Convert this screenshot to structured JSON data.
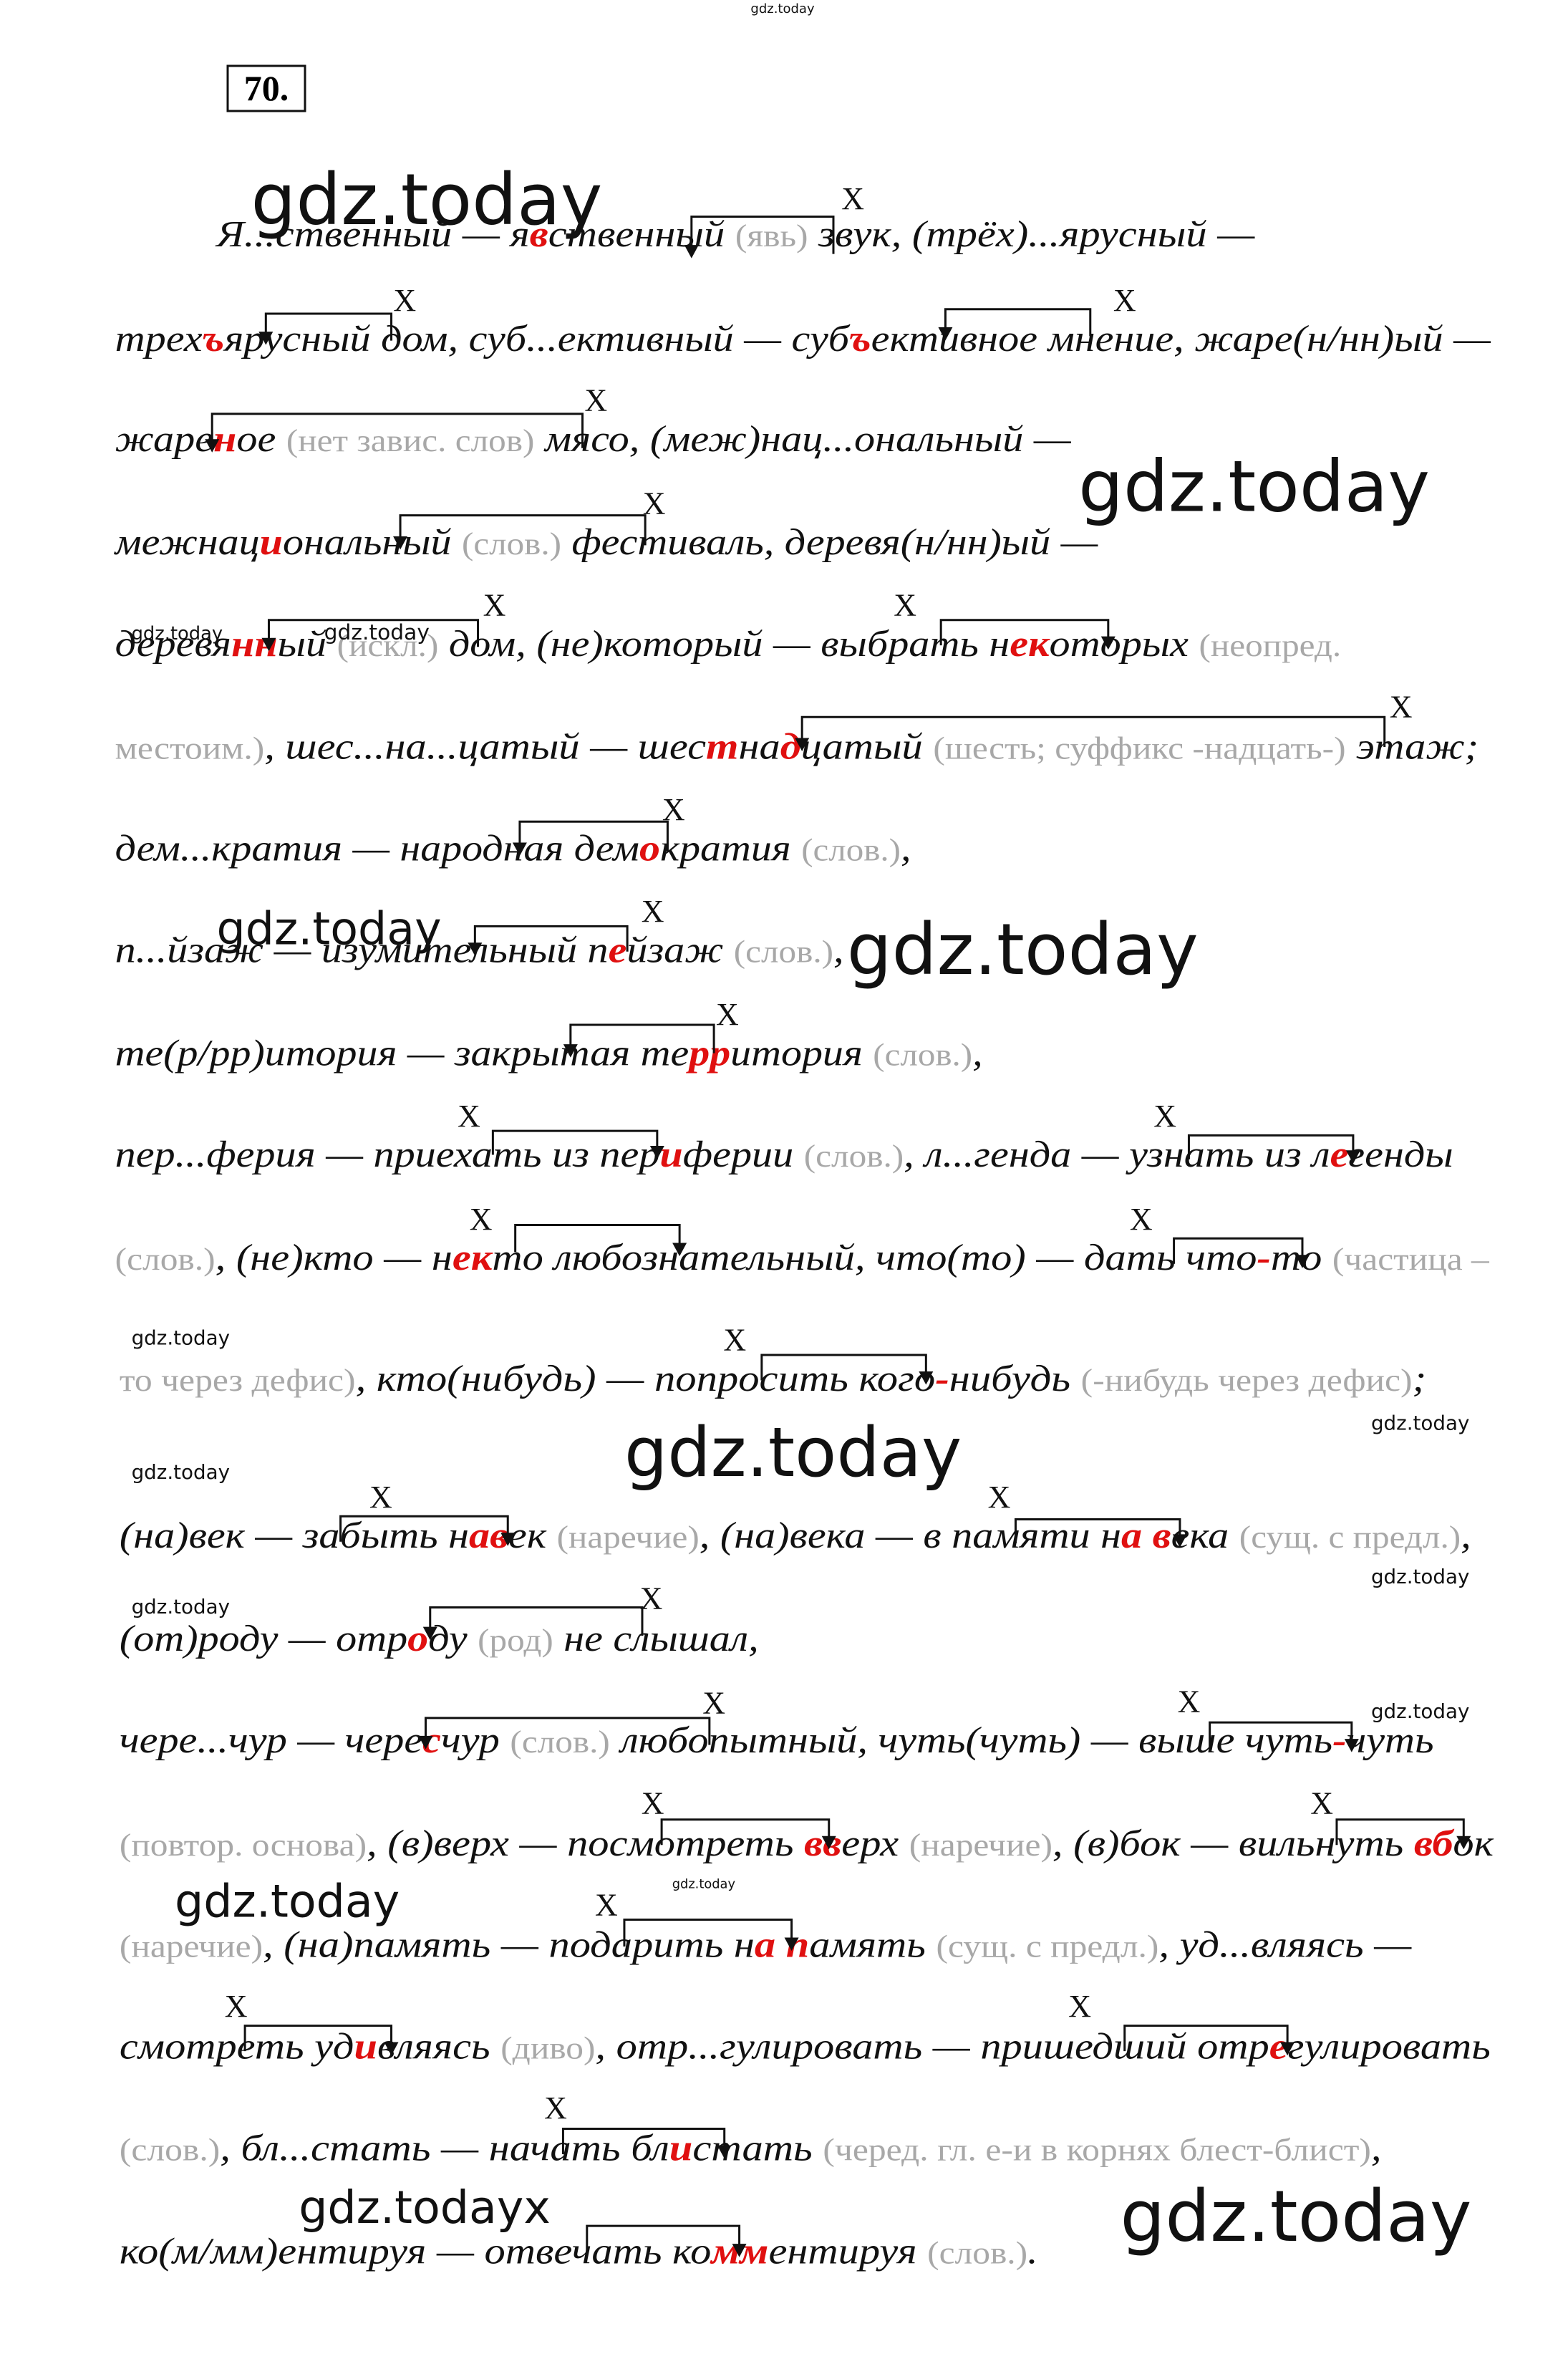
{
  "top_watermark": "gdz.today",
  "exercise_number": "70.",
  "lines": [
    [
      {
        "text": "Я...ственный — я"
      },
      {
        "text": "в",
        "color": "red"
      },
      {
        "text": "ственный "
      },
      {
        "text": "(явь)",
        "color": "grey"
      },
      {
        "text": " звук, (трёх)...ярусный —"
      }
    ],
    [
      {
        "text": "трех"
      },
      {
        "text": "ъ",
        "color": "red"
      },
      {
        "text": "ярусный дом, суб...ективный — суб"
      },
      {
        "text": "ъ",
        "color": "red"
      },
      {
        "text": "ективное мнение, жаре(н/нн)ый —"
      }
    ],
    [
      {
        "text": "жаре"
      },
      {
        "text": "н",
        "color": "red"
      },
      {
        "text": "ое "
      },
      {
        "text": "(нет завис. слов)",
        "color": "grey"
      },
      {
        "text": " мясо, (меж)нац...ональный —"
      }
    ],
    [
      {
        "text": "межнац"
      },
      {
        "text": "и",
        "color": "red"
      },
      {
        "text": "ональный "
      },
      {
        "text": "(слов.)",
        "color": "grey"
      },
      {
        "text": " фестиваль, деревя(н/нн)ый —"
      }
    ],
    [
      {
        "text": "деревя"
      },
      {
        "text": "нн",
        "color": "red"
      },
      {
        "text": "ый "
      },
      {
        "text": "(искл.)",
        "color": "grey"
      },
      {
        "text": " дом, (не)который — выбрать н"
      },
      {
        "text": "ек",
        "color": "red"
      },
      {
        "text": "оторых "
      },
      {
        "text": "(неопред.",
        "color": "grey"
      }
    ],
    [
      {
        "text": "местоим.)",
        "color": "grey"
      },
      {
        "text": ", шес...на...цатый — шес"
      },
      {
        "text": "т",
        "color": "red"
      },
      {
        "text": "на"
      },
      {
        "text": "д",
        "color": "red"
      },
      {
        "text": "цатый "
      },
      {
        "text": "(шесть; суффикс -надцать-)",
        "color": "grey"
      },
      {
        "text": " этаж;"
      }
    ],
    [
      {
        "text": "дем...кратия — народная дем"
      },
      {
        "text": "о",
        "color": "red"
      },
      {
        "text": "кратия "
      },
      {
        "text": "(слов.)",
        "color": "grey"
      },
      {
        "text": ","
      }
    ],
    [
      {
        "text": "п...йзаж — изумительный п"
      },
      {
        "text": "е",
        "color": "red"
      },
      {
        "text": "йзаж "
      },
      {
        "text": "(слов.)",
        "color": "grey"
      },
      {
        "text": ","
      }
    ],
    [
      {
        "text": "те(р/рр)итория — закрытая те"
      },
      {
        "text": "рр",
        "color": "red"
      },
      {
        "text": "итория "
      },
      {
        "text": "(слов.)",
        "color": "grey"
      },
      {
        "text": ","
      }
    ],
    [
      {
        "text": "пер...ферия — приехать из пер"
      },
      {
        "text": "и",
        "color": "red"
      },
      {
        "text": "ферии "
      },
      {
        "text": "(слов.)",
        "color": "grey"
      },
      {
        "text": ", л...генда — узнать из л"
      },
      {
        "text": "е",
        "color": "red"
      },
      {
        "text": "генды"
      }
    ],
    [
      {
        "text": "(слов.)",
        "color": "grey"
      },
      {
        "text": ", (не)кто — н"
      },
      {
        "text": "ек",
        "color": "red"
      },
      {
        "text": "то любознательный, что(то) — дать что"
      },
      {
        "text": "-",
        "color": "red"
      },
      {
        "text": "то "
      },
      {
        "text": "(частица –",
        "color": "grey"
      }
    ],
    [
      {
        "text": "то через дефис)",
        "color": "grey"
      },
      {
        "text": ", кто(нибудь) — попросить кого"
      },
      {
        "text": "-",
        "color": "red"
      },
      {
        "text": "нибудь "
      },
      {
        "text": "(-нибудь через дефис)",
        "color": "grey"
      },
      {
        "text": ";"
      }
    ],
    [
      {
        "text": "(на)век — забыть н"
      },
      {
        "text": "ав",
        "color": "red"
      },
      {
        "text": "ек "
      },
      {
        "text": "(наречие)",
        "color": "grey"
      },
      {
        "text": ", (на)века — в памяти н"
      },
      {
        "text": "а в",
        "color": "red"
      },
      {
        "text": "ека "
      },
      {
        "text": "(сущ. с предл.)",
        "color": "grey"
      },
      {
        "text": ","
      }
    ],
    [
      {
        "text": "(от)роду — отр"
      },
      {
        "text": "о",
        "color": "red"
      },
      {
        "text": "ду "
      },
      {
        "text": "(род)",
        "color": "grey"
      },
      {
        "text": " не слышал,"
      }
    ],
    [
      {
        "text": "чере...чур — чере"
      },
      {
        "text": "с",
        "color": "red"
      },
      {
        "text": "чур "
      },
      {
        "text": "(слов.)",
        "color": "grey"
      },
      {
        "text": " любопытный, чуть(чуть) — выше чуть"
      },
      {
        "text": "-",
        "color": "red"
      },
      {
        "text": "чуть"
      }
    ],
    [
      {
        "text": "(повтор. основа)",
        "color": "grey"
      },
      {
        "text": ", (в)верх — посмотреть "
      },
      {
        "text": "вв",
        "color": "red"
      },
      {
        "text": "ерх "
      },
      {
        "text": "(наречие)",
        "color": "grey"
      },
      {
        "text": ", (в)бок — вильнуть "
      },
      {
        "text": "вб",
        "color": "red"
      },
      {
        "text": "ок"
      }
    ],
    [
      {
        "text": "(наречие)",
        "color": "grey"
      },
      {
        "text": ", (на)память — подарить н"
      },
      {
        "text": "а п",
        "color": "red"
      },
      {
        "text": "амять "
      },
      {
        "text": "(сущ. с предл.)",
        "color": "grey"
      },
      {
        "text": ", уд...вляясь —"
      }
    ],
    [
      {
        "text": "смотреть уд"
      },
      {
        "text": "и",
        "color": "red"
      },
      {
        "text": "вляясь "
      },
      {
        "text": "(диво)",
        "color": "grey"
      },
      {
        "text": ", отр...гулировать — пришедший отр"
      },
      {
        "text": "е",
        "color": "red"
      },
      {
        "text": "гулировать"
      }
    ],
    [
      {
        "text": "(слов.)",
        "color": "grey"
      },
      {
        "text": ", бл...стать — начать бл"
      },
      {
        "text": "и",
        "color": "red"
      },
      {
        "text": "стать "
      },
      {
        "text": "(черед. гл. е-и в корнях блест-блист)",
        "color": "grey"
      },
      {
        "text": ","
      }
    ],
    [
      {
        "text": "ко(м/мм)ентируя — отвечать ко"
      },
      {
        "text": "мм",
        "color": "red"
      },
      {
        "text": "ентируя "
      },
      {
        "text": "(слов.)",
        "color": "grey"
      },
      {
        "text": "."
      }
    ]
  ],
  "annotations": [
    "X",
    "X",
    "X",
    "X",
    "X",
    "X",
    "X",
    "X",
    "X",
    "X",
    "X",
    "X",
    "X",
    "X",
    "X",
    "X",
    "X",
    "X",
    "X",
    "X",
    "X",
    "X",
    "X",
    "X",
    "X",
    "X",
    "X"
  ],
  "watermarks": [
    "gdz.today",
    "gdz.today",
    "gdz.today",
    "gdz.today",
    "gdz.today",
    "gdz.today",
    "gdz.today",
    "gdz.today",
    "gdz.today",
    "gdz.today",
    "gdz.today",
    "gdz.today",
    "gdz.today",
    "gdz.today",
    "gdz.today",
    "gdz.todayx",
    "gdz.today"
  ]
}
